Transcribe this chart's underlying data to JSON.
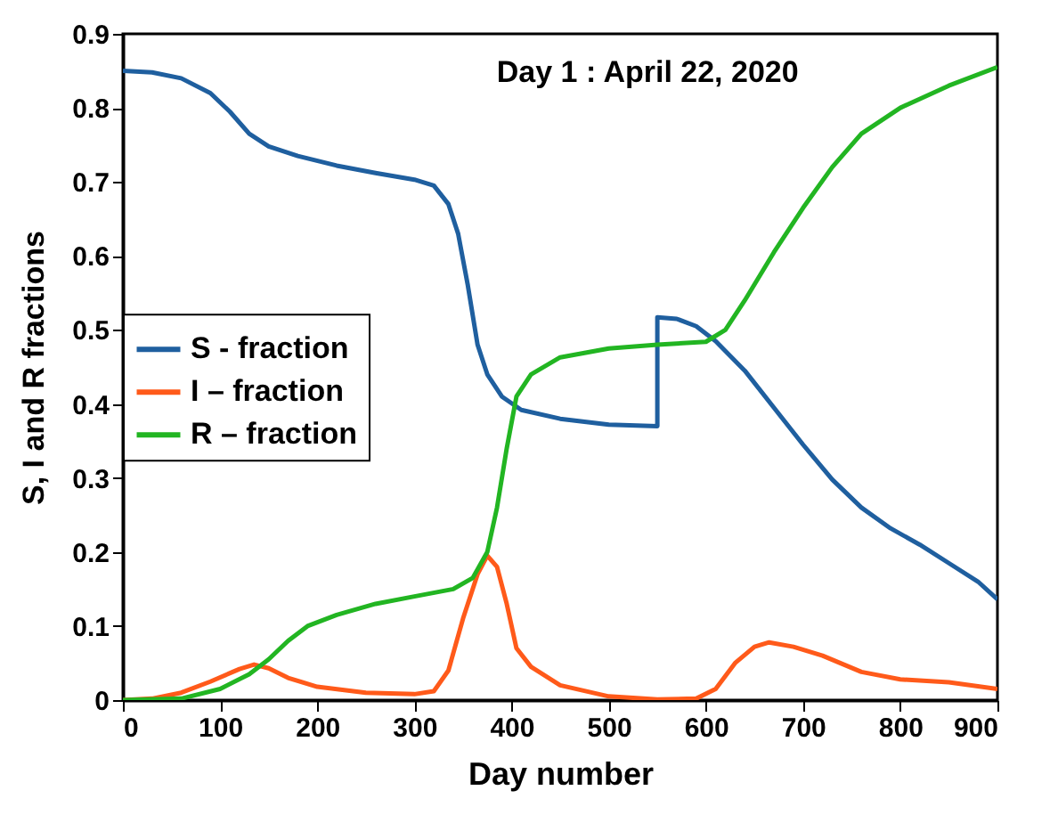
{
  "chart_data": {
    "type": "line",
    "xlabel": "Day number",
    "ylabel": "S, I and R fractions",
    "annotations": [
      "Day 1 : April 22, 2020"
    ],
    "xlim": [
      0,
      900
    ],
    "ylim": [
      0,
      0.9
    ],
    "xticks": [
      0,
      100,
      200,
      300,
      400,
      500,
      600,
      700,
      800,
      900
    ],
    "yticks": [
      0,
      0.1,
      0.2,
      0.3,
      0.4,
      0.5,
      0.6,
      0.7,
      0.8,
      0.9
    ],
    "grid": false,
    "legend": "left",
    "marker": "none",
    "line_style": "solid",
    "series": [
      {
        "name": "S - fraction",
        "color": "#1f5f9f",
        "x": [
          0,
          30,
          60,
          90,
          110,
          130,
          150,
          180,
          220,
          260,
          300,
          320,
          335,
          345,
          355,
          365,
          375,
          390,
          410,
          450,
          500,
          550,
          550,
          570,
          590,
          610,
          640,
          670,
          700,
          730,
          760,
          790,
          820,
          850,
          880,
          900
        ],
        "values": [
          0.85,
          0.848,
          0.84,
          0.82,
          0.795,
          0.765,
          0.748,
          0.735,
          0.722,
          0.712,
          0.703,
          0.695,
          0.67,
          0.63,
          0.56,
          0.48,
          0.44,
          0.41,
          0.392,
          0.38,
          0.372,
          0.37,
          0.517,
          0.515,
          0.505,
          0.485,
          0.445,
          0.395,
          0.345,
          0.298,
          0.26,
          0.232,
          0.21,
          0.185,
          0.16,
          0.136
        ]
      },
      {
        "name": "I – fraction",
        "color": "#ff5a1a",
        "x": [
          0,
          30,
          60,
          90,
          120,
          135,
          150,
          170,
          200,
          250,
          300,
          320,
          335,
          350,
          365,
          375,
          385,
          395,
          405,
          420,
          450,
          500,
          550,
          590,
          610,
          630,
          650,
          665,
          690,
          720,
          760,
          800,
          850,
          900
        ],
        "values": [
          0,
          0.002,
          0.01,
          0.025,
          0.042,
          0.048,
          0.043,
          0.03,
          0.018,
          0.01,
          0.008,
          0.012,
          0.04,
          0.11,
          0.17,
          0.195,
          0.18,
          0.13,
          0.07,
          0.045,
          0.02,
          0.005,
          0.001,
          0.002,
          0.015,
          0.05,
          0.072,
          0.078,
          0.072,
          0.06,
          0.038,
          0.028,
          0.024,
          0.015
        ]
      },
      {
        "name": "R – fraction",
        "color": "#22b522",
        "x": [
          0,
          60,
          100,
          130,
          150,
          170,
          190,
          220,
          260,
          300,
          340,
          360,
          375,
          385,
          395,
          405,
          420,
          450,
          500,
          550,
          600,
          620,
          640,
          670,
          700,
          730,
          760,
          800,
          850,
          900
        ],
        "values": [
          0,
          0.002,
          0.015,
          0.035,
          0.055,
          0.08,
          0.1,
          0.115,
          0.13,
          0.14,
          0.15,
          0.165,
          0.2,
          0.26,
          0.34,
          0.41,
          0.44,
          0.463,
          0.475,
          0.48,
          0.484,
          0.5,
          0.54,
          0.605,
          0.665,
          0.72,
          0.765,
          0.8,
          0.83,
          0.855
        ]
      }
    ]
  }
}
